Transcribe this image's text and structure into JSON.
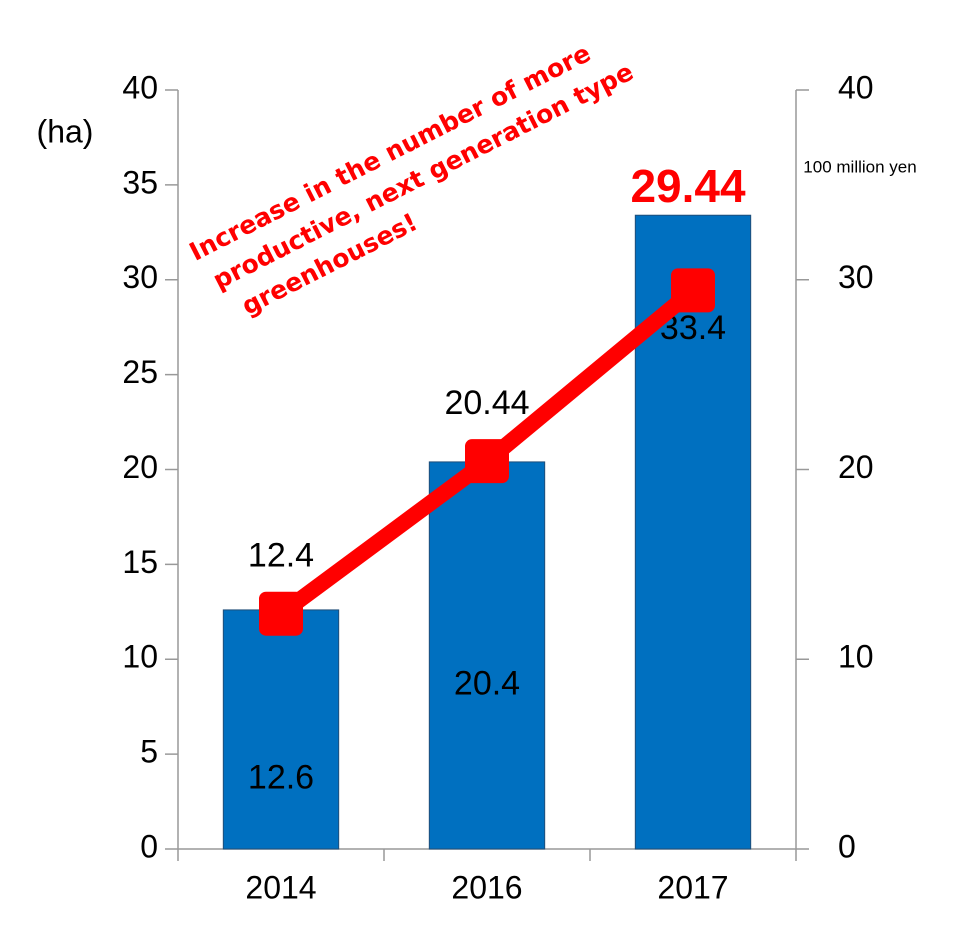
{
  "chart_data": {
    "type": "bar-line",
    "categories": [
      "2014",
      "2016",
      "2017"
    ],
    "series": [
      {
        "type": "bar",
        "color": "#0070c0",
        "values": [
          12.6,
          20.4,
          33.4
        ]
      },
      {
        "type": "line",
        "axis": "y2",
        "color": "#ff0000",
        "values": [
          12.4,
          20.44,
          29.44
        ]
      }
    ],
    "ylim": [
      0,
      40
    ],
    "yticks": [
      0,
      5,
      10,
      15,
      20,
      25,
      30,
      35,
      40
    ],
    "y2lim": [
      0,
      40
    ],
    "y2ticks": [
      0,
      10,
      20,
      30,
      40
    ],
    "ylabel": "(ha)",
    "y2label": "100 million yen",
    "annotation": [
      "Increase in the number of more",
      "productive, next generation type",
      "greenhouses!"
    ],
    "grid": false
  }
}
